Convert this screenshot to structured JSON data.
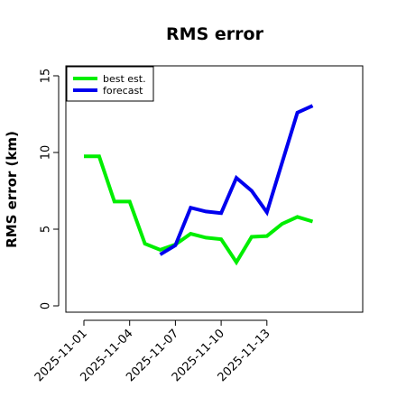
{
  "chart_data": {
    "type": "line",
    "title": "RMS error",
    "ylabel": "RMS error (km)",
    "xlabel": "",
    "ylim": [
      0,
      15
    ],
    "yticks": [
      0,
      5,
      10,
      15
    ],
    "xlim": [
      "2025-10-30",
      "2025-11-18"
    ],
    "xticks": [
      "2025-11-01",
      "2025-11-04",
      "2025-11-07",
      "2025-11-10",
      "2025-11-13"
    ],
    "legend_position": "top-left",
    "series": [
      {
        "name": "best est.",
        "color": "#00ee00",
        "x": [
          "2025-11-01",
          "2025-11-02",
          "2025-11-03",
          "2025-11-04",
          "2025-11-05",
          "2025-11-06",
          "2025-11-07",
          "2025-11-08",
          "2025-11-09",
          "2025-11-10",
          "2025-11-11",
          "2025-11-12",
          "2025-11-13",
          "2025-11-14",
          "2025-11-15",
          "2025-11-16"
        ],
        "values": [
          9.75,
          9.75,
          6.8,
          6.8,
          4.05,
          3.65,
          4.0,
          4.7,
          4.45,
          4.35,
          2.85,
          4.5,
          4.55,
          5.35,
          5.8,
          5.5
        ]
      },
      {
        "name": "forecast",
        "color": "#0000ee",
        "x": [
          "2025-11-06",
          "2025-11-07",
          "2025-11-08",
          "2025-11-09",
          "2025-11-10",
          "2025-11-11",
          "2025-11-12",
          "2025-11-13",
          "2025-11-14",
          "2025-11-15",
          "2025-11-16"
        ],
        "values": [
          3.35,
          3.95,
          6.4,
          6.15,
          6.05,
          8.35,
          7.5,
          6.1,
          9.35,
          12.6,
          13.05
        ]
      }
    ]
  }
}
